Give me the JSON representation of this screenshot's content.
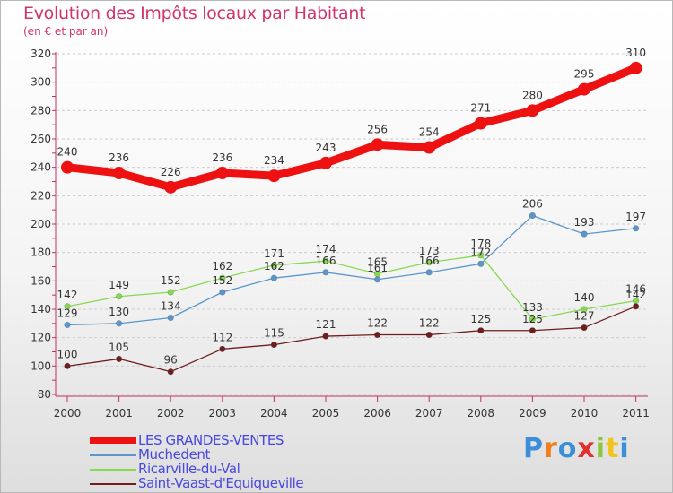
{
  "header": {
    "title": "Evolution des Impôts locaux par Habitant",
    "subtitle": "(en € et par an)"
  },
  "logo": {
    "text": "Proxiti",
    "colors": [
      "#3a8fd8",
      "#f07d1e",
      "#3a8fd8",
      "#e0312e",
      "#8cc63f",
      "#f0c419",
      "#3a8fd8"
    ]
  },
  "colors": {
    "title": "#d0346e",
    "legend_text": "#4848e0",
    "axis_text": "#333333",
    "grid": "#cccccc"
  },
  "chart_data": {
    "type": "line",
    "x": [
      "2000",
      "2001",
      "2002",
      "2003",
      "2004",
      "2005",
      "2006",
      "2007",
      "2008",
      "2009",
      "2010",
      "2011"
    ],
    "ylim": [
      80,
      320
    ],
    "yticks": [
      80,
      100,
      120,
      140,
      160,
      180,
      200,
      220,
      240,
      260,
      280,
      300,
      320
    ],
    "grid": "horizontal",
    "legend_position": "bottom-left",
    "series": [
      {
        "name": "LES GRANDES-VENTES",
        "color": "#ee1111",
        "values": [
          240,
          236,
          226,
          236,
          234,
          243,
          256,
          254,
          271,
          280,
          295,
          310
        ]
      },
      {
        "name": "Muchedent",
        "color": "#5a96cc",
        "values": [
          129,
          130,
          134,
          152,
          162,
          166,
          161,
          166,
          172,
          206,
          193,
          197
        ]
      },
      {
        "name": "Ricarville-du-Val",
        "color": "#88d850",
        "values": [
          142,
          149,
          152,
          162,
          171,
          174,
          165,
          173,
          178,
          133,
          140,
          146
        ]
      },
      {
        "name": "Saint-Vaast-d'Equiqueville",
        "color": "#6e1e1e",
        "values": [
          100,
          105,
          96,
          112,
          115,
          121,
          122,
          122,
          125,
          125,
          127,
          142
        ]
      }
    ]
  }
}
